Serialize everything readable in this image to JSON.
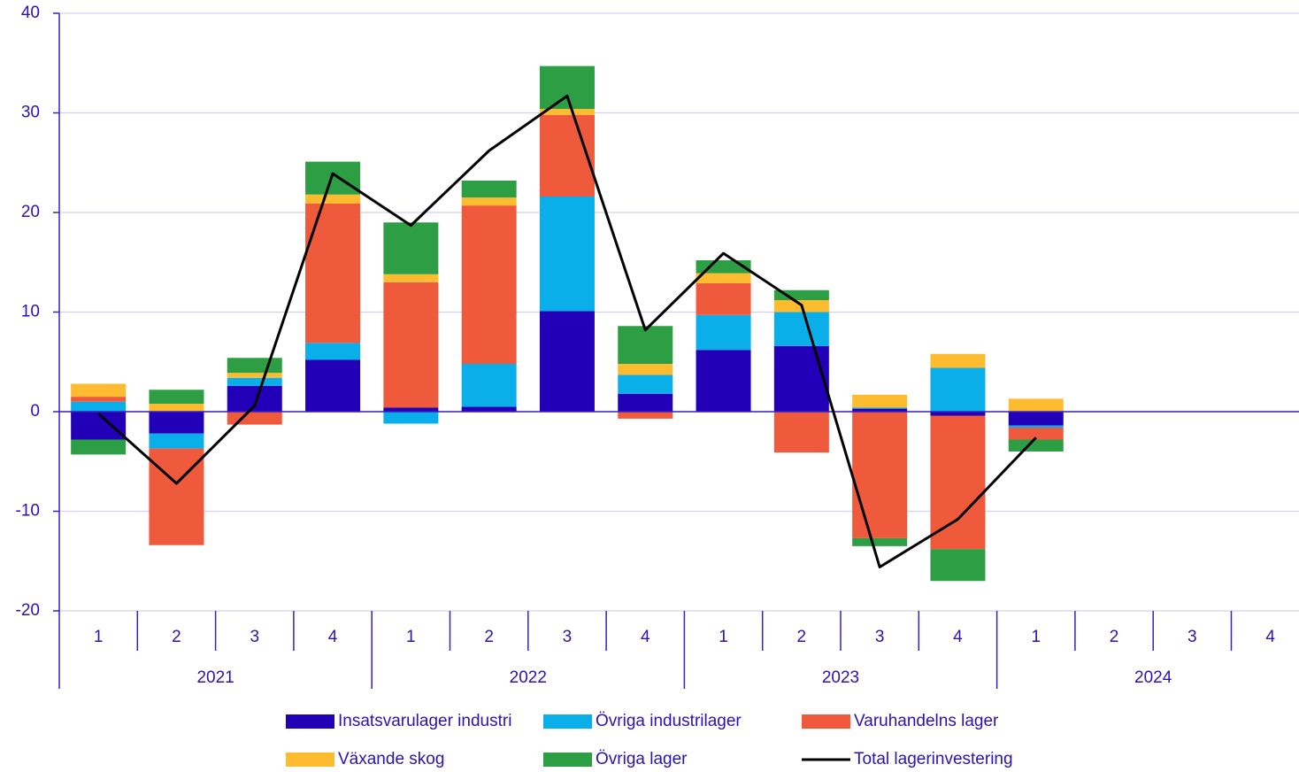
{
  "chart_data": {
    "type": "bar",
    "categories": [
      "1",
      "2",
      "3",
      "4",
      "1",
      "2",
      "3",
      "4",
      "1",
      "2",
      "3",
      "4",
      "1",
      "2",
      "3",
      "4"
    ],
    "years": [
      "2021",
      "2022",
      "2023",
      "2024"
    ],
    "series": [
      {
        "name": "Insatsvarulager industri",
        "color": "#2100b8",
        "values": [
          -2.8,
          -2.2,
          2.6,
          5.2,
          0.4,
          0.5,
          10.1,
          1.8,
          6.2,
          6.6,
          0.3,
          -0.4,
          -1.4,
          null,
          null,
          null
        ]
      },
      {
        "name": "Övriga industrilager",
        "color": "#0aafea",
        "values": [
          1.0,
          -1.5,
          0.8,
          1.7,
          -1.2,
          4.3,
          11.5,
          1.9,
          3.5,
          3.4,
          0.1,
          4.4,
          -0.2,
          null,
          null,
          null
        ]
      },
      {
        "name": "Varuhandelns lager",
        "color": "#f05a3c",
        "values": [
          0.5,
          -9.7,
          -1.3,
          14.0,
          12.6,
          15.9,
          8.2,
          -0.7,
          3.2,
          -4.1,
          -12.7,
          -13.4,
          -1.2,
          null,
          null,
          null
        ]
      },
      {
        "name": "Växande skog",
        "color": "#fdbb30",
        "values": [
          1.3,
          0.8,
          0.5,
          0.9,
          0.8,
          0.8,
          0.6,
          1.1,
          1.0,
          1.2,
          1.3,
          1.4,
          1.3,
          null,
          null,
          null
        ]
      },
      {
        "name": "Övriga lager",
        "color": "#2e9e44",
        "values": [
          -1.5,
          1.4,
          1.5,
          3.3,
          5.2,
          1.7,
          4.3,
          3.8,
          1.3,
          1.0,
          -0.8,
          -3.2,
          -1.2,
          null,
          null,
          null
        ]
      },
      {
        "name": "Total lagerinvestering",
        "type": "line",
        "color": "#000000",
        "values": [
          -0.2,
          -7.2,
          0.6,
          23.9,
          18.7,
          26.2,
          31.7,
          8.2,
          15.9,
          10.7,
          -15.6,
          -10.8,
          -2.6,
          null,
          null,
          null
        ]
      }
    ],
    "ylim": [
      -20,
      40
    ],
    "yticks": [
      -20,
      -10,
      0,
      10,
      20,
      30,
      40
    ],
    "grid": true
  }
}
